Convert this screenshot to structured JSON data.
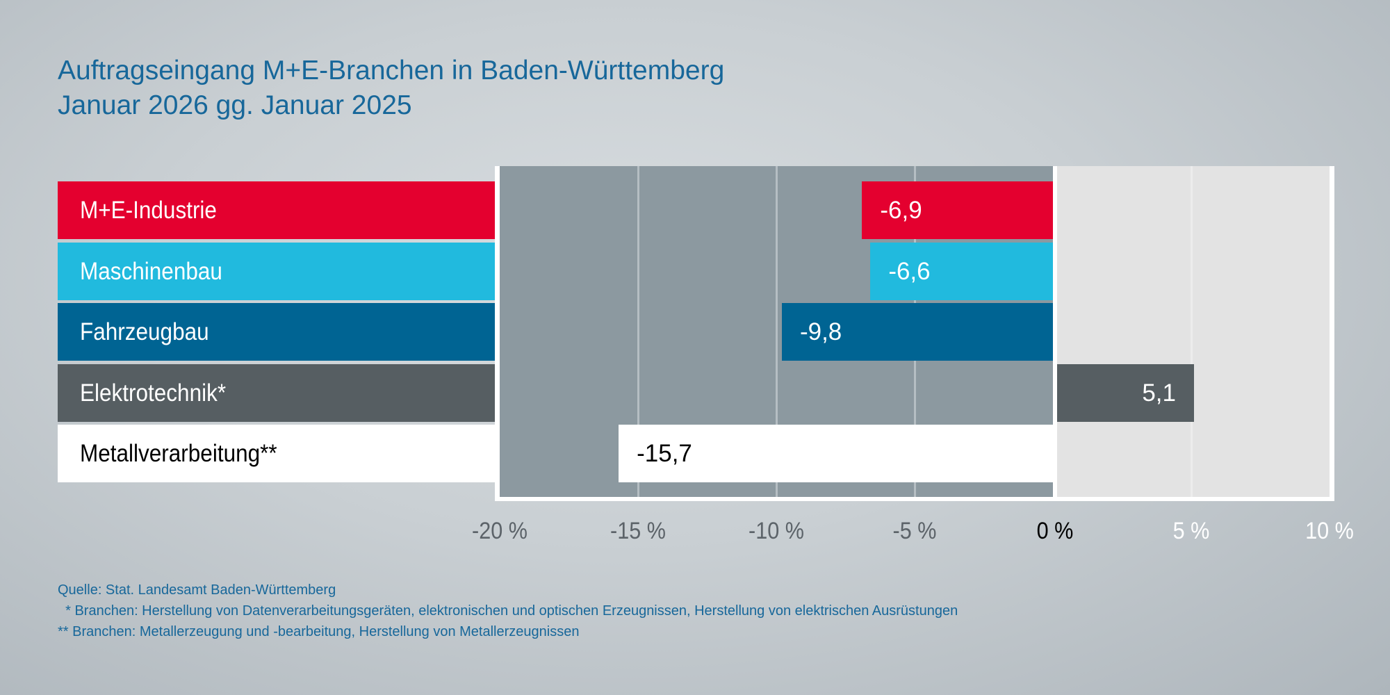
{
  "title": "Auftragseingang M+E-Branchen in Baden-Württemberg",
  "subtitle": "Januar 2026 gg. Januar 2025",
  "chart_data": {
    "type": "bar",
    "orientation": "horizontal",
    "title": "Auftragseingang M+E-Branchen in Baden-Württemberg",
    "subtitle": "Januar 2026 gg. Januar 2025",
    "categories": [
      "M+E-Industrie",
      "Maschinenbau",
      "Fahrzeugbau",
      "Elektrotechnik*",
      "Metallverarbeitung**"
    ],
    "values": [
      -6.9,
      -6.6,
      -9.8,
      5.1,
      -15.7
    ],
    "value_labels": [
      "-6,9",
      "-6,6",
      "-9,8",
      "5,1",
      "-15,7"
    ],
    "colors": [
      "#e4002f",
      "#21bade",
      "#006493",
      "#565e62",
      "#ffffff"
    ],
    "text_colors": [
      "#ffffff",
      "#ffffff",
      "#ffffff",
      "#ffffff",
      "#000000"
    ],
    "xlim": [
      -20,
      10
    ],
    "xticks": [
      -20,
      -15,
      -10,
      -5,
      0,
      5,
      10
    ],
    "xtick_labels": [
      "-20 %",
      "-15 %",
      "-10 %",
      "-5 %",
      "0 %",
      "5 %",
      "10 %"
    ],
    "grid": true,
    "negative_area_color": "#8c99a0",
    "positive_area_color": "#e3e3e3"
  },
  "footnotes": [
    "Quelle: Stat. Landesamt Baden-Württemberg",
    "  * Branchen: Herstellung von Datenverarbeitungsgeräten, elektronischen und optischen Erzeugnissen, Herstellung von elektrischen Ausrüstungen",
    "** Branchen: Metallerzeugung und -bearbeitung, Herstellung von Metallerzeugnissen"
  ]
}
